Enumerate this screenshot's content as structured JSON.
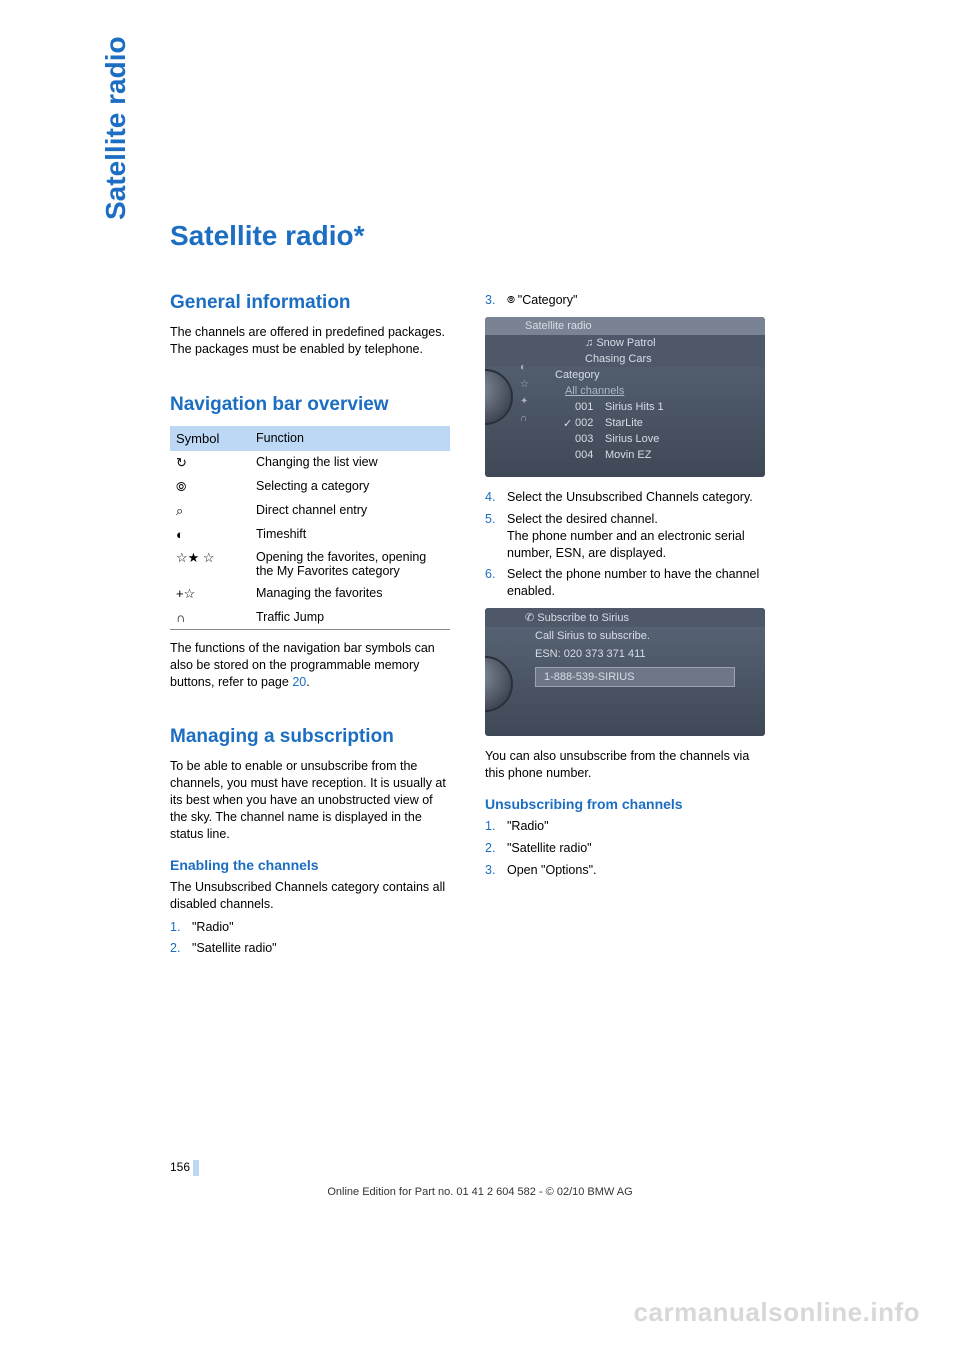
{
  "colors": {
    "accent": "#1b6ec2",
    "table_header_bg": "#bcd8f5",
    "page_bg": "#ffffff",
    "screenshot_bg_top": "#5a6678",
    "screenshot_bg_bottom": "#3f4856",
    "watermark": "#d8d8d8"
  },
  "fonts": {
    "body_size_pt": 9.5,
    "h1_size_pt": 21,
    "h2_size_pt": 14
  },
  "side_tab": "Satellite radio",
  "title": "Satellite radio*",
  "general": {
    "heading": "General information",
    "body": "The channels are offered in predefined packages. The packages must be enabled by telephone."
  },
  "navbar": {
    "heading": "Navigation bar overview",
    "table": {
      "cols": [
        "Symbol",
        "Function"
      ],
      "rows": [
        {
          "sym": "↻",
          "fn": "Changing the list view"
        },
        {
          "sym": "⦾",
          "fn": "Selecting a category"
        },
        {
          "sym": "⌕",
          "fn": "Direct channel entry"
        },
        {
          "sym": "◐",
          "fn": "Timeshift"
        },
        {
          "sym": "☆★ ☆",
          "fn": "Opening the favorites, opening the My Favorites category"
        },
        {
          "sym": "+☆",
          "fn": "Managing the favorites"
        },
        {
          "sym": "∩",
          "fn": "Traffic Jump"
        }
      ]
    },
    "note_pre": "The functions of the navigation bar symbols can also be stored on the programmable memory buttons, refer to page ",
    "note_link": "20",
    "note_post": "."
  },
  "subscription": {
    "heading": "Managing a subscription",
    "intro": "To be able to enable or unsubscribe from the channels, you must have reception. It is usually at its best when you have an unobstructed view of the sky. The channel name is displayed in the status line.",
    "enable_heading": "Enabling the channels",
    "enable_intro": "The Unsubscribed Channels category contains all disabled channels.",
    "steps_a": [
      "\"Radio\"",
      "\"Satellite radio\""
    ]
  },
  "right": {
    "step3_pre": "",
    "step3": "\"Category\"",
    "shot1": {
      "title": "Satellite radio",
      "artist": "Snow Patrol",
      "track": "Chasing Cars",
      "crumb": "Category",
      "all": "All channels",
      "rows": [
        {
          "n": "001",
          "name": "Sirius Hits 1",
          "checked": false
        },
        {
          "n": "002",
          "name": "StarLite",
          "checked": true
        },
        {
          "n": "003",
          "name": "Sirius Love",
          "checked": false
        },
        {
          "n": "004",
          "name": "Movin EZ",
          "checked": false
        }
      ]
    },
    "step4": "Select the Unsubscribed Channels category.",
    "step5a": "Select the desired channel.",
    "step5b": "The phone number and an electronic serial number, ESN, are displayed.",
    "step6": "Select the phone number to have the channel enabled.",
    "shot2": {
      "title": "Subscribe to Sirius",
      "line1": "Call Sirius to subscribe.",
      "line2": "ESN: 020 373 371 411",
      "phone": "1-888-539-SIRIUS"
    },
    "after_shot2": "You can also unsubscribe from the channels via this phone number.",
    "unsub_heading": "Unsubscribing from channels",
    "unsub_steps": [
      "\"Radio\"",
      "\"Satellite radio\"",
      "Open \"Options\"."
    ]
  },
  "page_number": "156",
  "footer": "Online Edition for Part no. 01 41 2 604 582 - © 02/10 BMW AG",
  "watermark": "carmanualsonline.info"
}
